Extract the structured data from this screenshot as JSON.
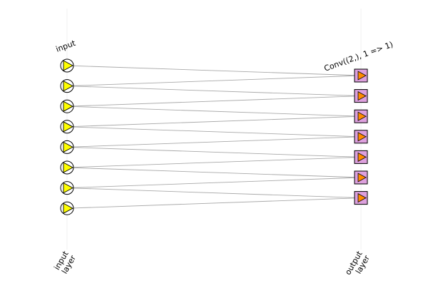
{
  "diagram": {
    "input_node_label": "input",
    "layer_label": "Conv((2,), 1 => 1)",
    "xaxis_ticks": [
      "input\nlayer",
      "output\nlayer"
    ],
    "input_node_count": 8,
    "output_node_count": 7,
    "kernel_size": 2,
    "colors": {
      "input_fill": "#ffff00",
      "output_fill": "#dda0dd",
      "output_glyph": "#ff8c00",
      "edge": "#a9a9a9",
      "gridline": "#f0f0f0"
    }
  }
}
